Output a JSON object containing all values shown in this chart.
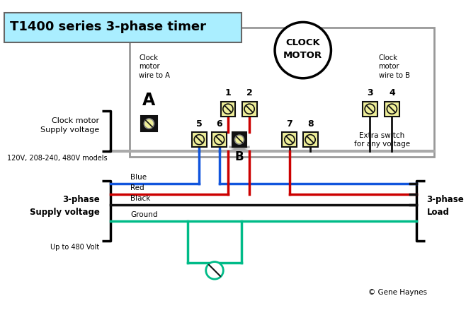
{
  "title": "T1400 series 3-phase timer",
  "title_bg": "#aaeeff",
  "background_color": "#ffffff",
  "fig_width": 6.58,
  "fig_height": 4.53,
  "clock_motor_label_1": "CLOCK",
  "clock_motor_label_2": "MOTOR",
  "clock_motor_wire_A": "Clock\nmotor\nwire to A",
  "clock_motor_wire_B": "Clock\nmotor\nwire to B",
  "terminal_label_A": "A",
  "terminal_label_B": "B",
  "extra_switch_label": "Extra switch\nfor any voltage",
  "clock_motor_supply_1": "Clock motor",
  "clock_motor_supply_2": "Supply voltage",
  "clock_motor_supply_sub": "120V, 208-240, 480V models",
  "three_phase_supply_1": "3-phase",
  "three_phase_supply_2": "Supply voltage",
  "three_phase_supply_sub": "Up to 480 Volt",
  "three_phase_load": "3-phase\nLoad",
  "wire_blue_label": "Blue",
  "wire_red_label": "Red",
  "wire_black_label": "Black",
  "wire_ground_label": "Ground",
  "blue_color": "#1155dd",
  "red_color": "#cc0000",
  "black_color": "#111111",
  "green_color": "#00bb88",
  "gray_color": "#aaaaaa",
  "terminal_fill": "#eeee99",
  "terminal_border": "#111111",
  "gray_box_color": "#999999",
  "copyright": "© Gene Haynes"
}
